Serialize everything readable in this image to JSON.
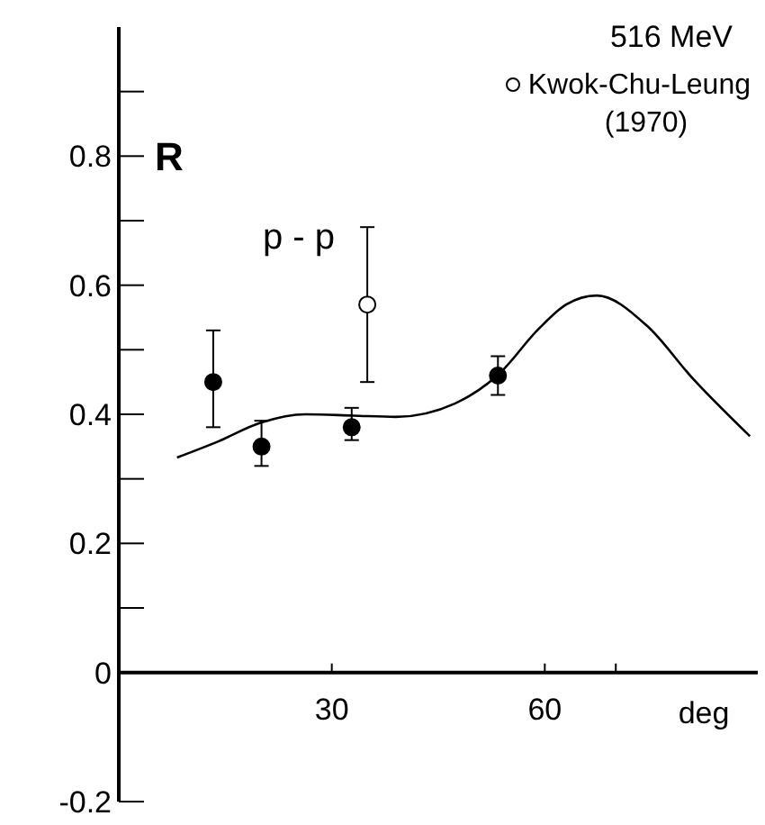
{
  "chart_data": {
    "type": "scatter",
    "ylabel": "R",
    "xlabel": "deg",
    "annotations": [
      "516 MeV",
      "p - p"
    ],
    "xlim": [
      0,
      90
    ],
    "xticks": [
      30,
      60,
      {
        "value": 70,
        "label": null
      }
    ],
    "ylim": [
      -0.2,
      1.0
    ],
    "yticks": [
      -0.2,
      0,
      {
        "value": 0.1,
        "label": null
      },
      0.2,
      {
        "value": 0.3,
        "label": null
      },
      0.4,
      {
        "value": 0.5,
        "label": null
      },
      0.6,
      {
        "value": 0.7,
        "label": null
      },
      0.8,
      {
        "value": 0.9,
        "label": null
      }
    ],
    "grid": false,
    "legend": "top right",
    "marker": "circle",
    "series": [
      {
        "color": "#000000",
        "x": [
          13.3,
          20.1,
          32.8,
          53.4
        ],
        "values": [
          0.45,
          0.35,
          0.38,
          0.46
        ],
        "errors": [
          [
            0.38,
            0.53
          ],
          [
            0.32,
            0.39
          ],
          [
            0.36,
            0.41
          ],
          [
            0.43,
            0.49
          ]
        ]
      },
      {
        "name": "Kwok-Chu-Leung (1970)",
        "color": "#ffffff",
        "x": [
          35.0
        ],
        "values": [
          0.57
        ],
        "errors": [
          [
            0.45,
            0.69
          ]
        ]
      },
      {
        "type": "line",
        "color": "#000000",
        "marker": "none",
        "line_style": "solid",
        "x": [
          8.2,
          14,
          20,
          26.3,
          33,
          39,
          47.4,
          53.4,
          59.2,
          63,
          67.3,
          74.4,
          80.8,
          88.9
        ],
        "values": [
          0.333,
          0.358,
          0.387,
          0.4,
          0.398,
          0.396,
          0.417,
          0.461,
          0.533,
          0.57,
          0.584,
          0.537,
          0.456,
          0.366
        ]
      }
    ]
  }
}
